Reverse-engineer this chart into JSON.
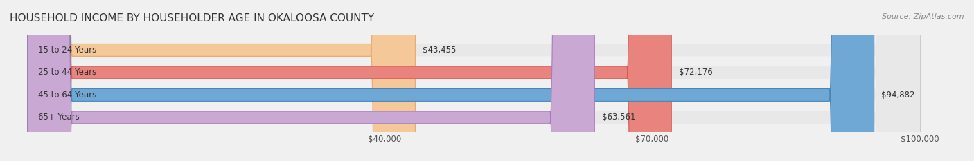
{
  "title": "HOUSEHOLD INCOME BY HOUSEHOLDER AGE IN OKALOOSA COUNTY",
  "source": "Source: ZipAtlas.com",
  "categories": [
    "15 to 24 Years",
    "25 to 44 Years",
    "45 to 64 Years",
    "65+ Years"
  ],
  "values": [
    43455,
    72176,
    94882,
    63561
  ],
  "bar_colors": [
    "#f5c89a",
    "#e8837e",
    "#6fa8d4",
    "#c9a8d4"
  ],
  "bar_edge_colors": [
    "#e8a870",
    "#d45c55",
    "#4a85b8",
    "#a87ab8"
  ],
  "background_color": "#f0f0f0",
  "bar_background_color": "#e8e8e8",
  "x_min": 0,
  "x_max": 100000,
  "x_ticks": [
    40000,
    70000,
    100000
  ],
  "x_tick_labels": [
    "$40,000",
    "$70,000",
    "$100,000"
  ],
  "value_labels": [
    "$43,455",
    "$72,176",
    "$94,882",
    "$63,561"
  ],
  "title_fontsize": 11,
  "source_fontsize": 8,
  "label_fontsize": 8.5,
  "tick_fontsize": 8.5,
  "bar_height": 0.55
}
